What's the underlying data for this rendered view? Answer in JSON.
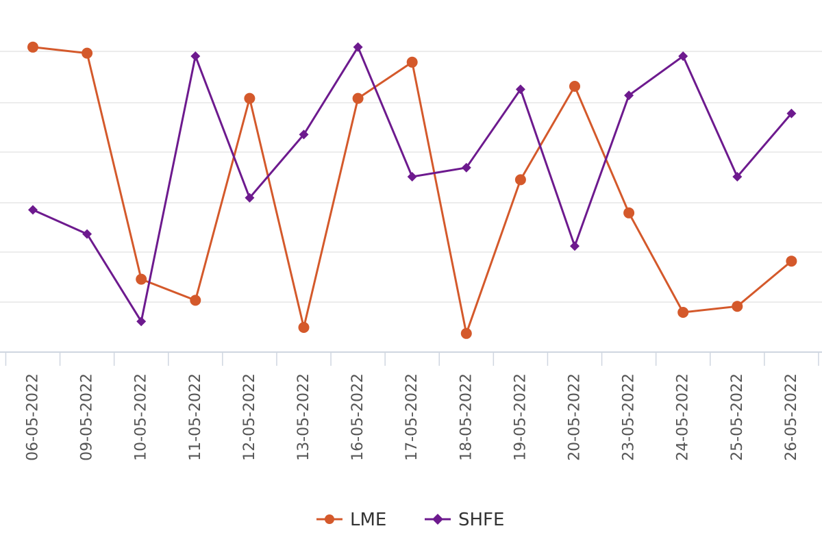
{
  "chart_data": {
    "type": "line",
    "categories": [
      "06-05-2022",
      "09-05-2022",
      "10-05-2022",
      "11-05-2022",
      "12-05-2022",
      "13-05-2022",
      "16-05-2022",
      "17-05-2022",
      "18-05-2022",
      "19-05-2022",
      "20-05-2022",
      "23-05-2022",
      "24-05-2022",
      "25-05-2022",
      "26-05-2022"
    ],
    "series": [
      {
        "name": "LME",
        "color": "#d4592b",
        "marker": "circle",
        "values": [
          0.98,
          0.96,
          0.21,
          0.14,
          0.81,
          0.05,
          0.81,
          0.93,
          0.03,
          0.54,
          0.85,
          0.43,
          0.1,
          0.12,
          0.27
        ]
      },
      {
        "name": "SHFE",
        "color": "#6d1a8e",
        "marker": "diamond",
        "values": [
          0.44,
          0.36,
          0.07,
          0.95,
          0.48,
          0.69,
          0.98,
          0.55,
          0.58,
          0.84,
          0.32,
          0.82,
          0.95,
          0.55,
          0.76
        ]
      }
    ],
    "legend_position": "bottom-center",
    "grid": true
  }
}
